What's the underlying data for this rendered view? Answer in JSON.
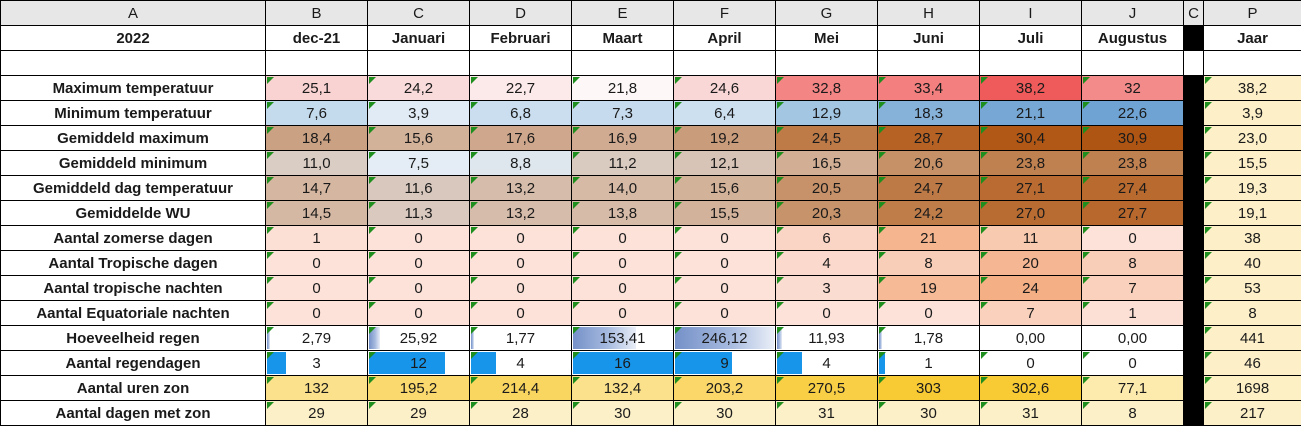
{
  "columns": {
    "letters": [
      "A",
      "B",
      "C",
      "D",
      "E",
      "F",
      "G",
      "H",
      "I",
      "J",
      "C",
      "P"
    ]
  },
  "title_row": {
    "year_label": "2022",
    "months": [
      "dec-21",
      "Januari",
      "Februari",
      "Maart",
      "April",
      "Mei",
      "Juni",
      "Juli",
      "Augustus"
    ],
    "total_label": "Jaar"
  },
  "colors": {
    "grid_border": "#000000",
    "header_bg": "#E7E7E7",
    "separator_column": "#000000",
    "error_triangle": "#1E8E1E",
    "solid_data_bar": "#1695EA",
    "gradient_data_bar": "#7591C8",
    "year_column_bg": "#FDF0C8"
  },
  "rows": [
    {
      "label": "Maximum temperatuur",
      "cells": [
        {
          "text": "25,1",
          "bg": "#F9D2D2",
          "tri": true
        },
        {
          "text": "24,2",
          "bg": "#FADBDB",
          "tri": true
        },
        {
          "text": "22,7",
          "bg": "#FCE9E9",
          "tri": true
        },
        {
          "text": "21,8",
          "bg": "#FEF7F7",
          "tri": true
        },
        {
          "text": "24,6",
          "bg": "#FAD7D7",
          "tri": true
        },
        {
          "text": "32,8",
          "bg": "#F48585",
          "tri": true
        },
        {
          "text": "33,4",
          "bg": "#F37F7F",
          "tri": true
        },
        {
          "text": "38,2",
          "bg": "#EF5B5B",
          "tri": true
        },
        {
          "text": "32",
          "bg": "#F48B8B",
          "tri": true
        }
      ],
      "total": {
        "text": "38,2",
        "bg": "#FDF0C8",
        "tri": true
      }
    },
    {
      "label": "Minimum temperatuur",
      "cells": [
        {
          "text": "7,6",
          "bg": "#C4DAED",
          "tri": true
        },
        {
          "text": "3,9",
          "bg": "#E0EBF5",
          "tri": true
        },
        {
          "text": "6,8",
          "bg": "#CADEEF",
          "tri": true
        },
        {
          "text": "7,3",
          "bg": "#C6DBEE",
          "tri": true
        },
        {
          "text": "6,4",
          "bg": "#CDE0F0",
          "tri": true
        },
        {
          "text": "12,9",
          "bg": "#A3C6E3",
          "tri": true
        },
        {
          "text": "18,3",
          "bg": "#86B2DA",
          "tri": true
        },
        {
          "text": "21,1",
          "bg": "#77A8D5",
          "tri": true
        },
        {
          "text": "22,6",
          "bg": "#6FA3D3",
          "tri": true
        }
      ],
      "total": {
        "text": "3,9",
        "bg": "#FDF0C8",
        "tri": true
      }
    },
    {
      "label": "Gemiddeld maximum",
      "cells": [
        {
          "text": "18,4",
          "bg": "#CBA184",
          "tri": true
        },
        {
          "text": "15,6",
          "bg": "#D3B29A",
          "tri": true
        },
        {
          "text": "17,6",
          "bg": "#CEA78C",
          "tri": true
        },
        {
          "text": "16,9",
          "bg": "#D0AB92",
          "tri": true
        },
        {
          "text": "19,2",
          "bg": "#C99C7B",
          "tri": true
        },
        {
          "text": "24,5",
          "bg": "#BE7B48",
          "tri": true
        },
        {
          "text": "28,7",
          "bg": "#B56224",
          "tri": true
        },
        {
          "text": "30,4",
          "bg": "#B15817",
          "tri": true
        },
        {
          "text": "30,9",
          "bg": "#AF5513",
          "tri": true
        }
      ],
      "total": {
        "text": "23,0",
        "bg": "#FDF0C8",
        "tri": true
      }
    },
    {
      "label": "Gemiddeld minimum",
      "cells": [
        {
          "text": "11,0",
          "bg": "#DACDC4",
          "tri": true
        },
        {
          "text": "7,5",
          "bg": "#E4EDF5",
          "tri": true
        },
        {
          "text": "8,8",
          "bg": "#DEE7ED",
          "tri": true
        },
        {
          "text": "11,2",
          "bg": "#DACBC1",
          "tri": true
        },
        {
          "text": "12,1",
          "bg": "#D8C4B6",
          "tri": true
        },
        {
          "text": "16,5",
          "bg": "#D2AE95",
          "tri": true
        },
        {
          "text": "20,6",
          "bg": "#C79168",
          "tri": true
        },
        {
          "text": "23,8",
          "bg": "#C08150",
          "tri": true
        },
        {
          "text": "23,8",
          "bg": "#C08150",
          "tri": true
        }
      ],
      "total": {
        "text": "15,5",
        "bg": "#FDF0C8",
        "tri": true
      }
    },
    {
      "label": "Gemiddeld dag temperatuur",
      "cells": [
        {
          "text": "14,7",
          "bg": "#D5B7A1",
          "tri": true
        },
        {
          "text": "11,6",
          "bg": "#D9C8BD",
          "tri": true
        },
        {
          "text": "13,2",
          "bg": "#D6BCAB",
          "tri": true
        },
        {
          "text": "14,0",
          "bg": "#D6BAA6",
          "tri": true
        },
        {
          "text": "15,6",
          "bg": "#D3B29A",
          "tri": true
        },
        {
          "text": "20,5",
          "bg": "#C79269",
          "tri": true
        },
        {
          "text": "24,7",
          "bg": "#BE7A46",
          "tri": true
        },
        {
          "text": "27,1",
          "bg": "#B96B31",
          "tri": true
        },
        {
          "text": "27,4",
          "bg": "#B86A2F",
          "tri": true
        }
      ],
      "total": {
        "text": "19,3",
        "bg": "#FDF0C8",
        "tri": true
      }
    },
    {
      "label": "Gemiddelde WU",
      "cells": [
        {
          "text": "14,5",
          "bg": "#D5B8A3",
          "tri": true
        },
        {
          "text": "11,3",
          "bg": "#D9C9BF",
          "tri": true
        },
        {
          "text": "13,2",
          "bg": "#D6BCAB",
          "tri": true
        },
        {
          "text": "13,8",
          "bg": "#D6BBA8",
          "tri": true
        },
        {
          "text": "15,5",
          "bg": "#D3B29B",
          "tri": true
        },
        {
          "text": "20,3",
          "bg": "#C7936B",
          "tri": true
        },
        {
          "text": "24,2",
          "bg": "#BF7D4A",
          "tri": true
        },
        {
          "text": "27,0",
          "bg": "#B96C32",
          "tri": true
        },
        {
          "text": "27,7",
          "bg": "#B8682C",
          "tri": true
        }
      ],
      "total": {
        "text": "19,1",
        "bg": "#FDF0C8",
        "tri": true
      }
    },
    {
      "label": "Aantal zomerse dagen",
      "cells": [
        {
          "text": "1",
          "bg": "#FCE0D6",
          "tri": true
        },
        {
          "text": "0",
          "bg": "#FCE2D9",
          "tri": true
        },
        {
          "text": "0",
          "bg": "#FCE2D9",
          "tri": true
        },
        {
          "text": "0",
          "bg": "#FCE2D9",
          "tri": true
        },
        {
          "text": "0",
          "bg": "#FCE2D9",
          "tri": true
        },
        {
          "text": "6",
          "bg": "#FAD4C5",
          "tri": true
        },
        {
          "text": "21",
          "bg": "#F5B58F",
          "tri": true
        },
        {
          "text": "11",
          "bg": "#F8CAAF",
          "tri": true
        },
        {
          "text": "0",
          "bg": "#FCE2D9",
          "tri": true
        }
      ],
      "total": {
        "text": "38",
        "bg": "#FDF0C8",
        "tri": true
      }
    },
    {
      "label": "Aantal Tropische dagen",
      "cells": [
        {
          "text": "0",
          "bg": "#FCE2D9",
          "tri": true
        },
        {
          "text": "0",
          "bg": "#FCE2D9",
          "tri": true
        },
        {
          "text": "0",
          "bg": "#FCE2D9",
          "tri": true
        },
        {
          "text": "0",
          "bg": "#FCE2D9",
          "tri": true
        },
        {
          "text": "0",
          "bg": "#FCE2D9",
          "tri": true
        },
        {
          "text": "4",
          "bg": "#FBD9CC",
          "tri": true
        },
        {
          "text": "8",
          "bg": "#F9CEB8",
          "tri": true
        },
        {
          "text": "20",
          "bg": "#F5B793",
          "tri": true
        },
        {
          "text": "8",
          "bg": "#F9CEB8",
          "tri": true
        }
      ],
      "total": {
        "text": "40",
        "bg": "#FDF0C8",
        "tri": true
      }
    },
    {
      "label": "Aantal tropische nachten",
      "cells": [
        {
          "text": "0",
          "bg": "#FCE2D9",
          "tri": true
        },
        {
          "text": "0",
          "bg": "#FCE2D9",
          "tri": true
        },
        {
          "text": "0",
          "bg": "#FCE2D9",
          "tri": true
        },
        {
          "text": "0",
          "bg": "#FCE2D9",
          "tri": true
        },
        {
          "text": "0",
          "bg": "#FCE2D9",
          "tri": true
        },
        {
          "text": "3",
          "bg": "#FBDCD0",
          "tri": true
        },
        {
          "text": "19",
          "bg": "#F6BA97",
          "tri": true
        },
        {
          "text": "24",
          "bg": "#F4AF85",
          "tri": true
        },
        {
          "text": "7",
          "bg": "#F9D1BC",
          "tri": true
        }
      ],
      "total": {
        "text": "53",
        "bg": "#FDF0C8",
        "tri": true
      }
    },
    {
      "label": "Aantal  Equatoriale nachten",
      "cells": [
        {
          "text": "0",
          "bg": "#FCE2D9",
          "tri": true
        },
        {
          "text": "0",
          "bg": "#FCE2D9",
          "tri": true
        },
        {
          "text": "0",
          "bg": "#FCE2D9",
          "tri": true
        },
        {
          "text": "0",
          "bg": "#FCE2D9",
          "tri": true
        },
        {
          "text": "0",
          "bg": "#FCE2D9",
          "tri": true
        },
        {
          "text": "0",
          "bg": "#FCE2D9",
          "tri": true
        },
        {
          "text": "0",
          "bg": "#FCE2D9",
          "tri": true
        },
        {
          "text": "7",
          "bg": "#F9D1BC",
          "tri": true
        },
        {
          "text": "1",
          "bg": "#FCE0D6",
          "tri": true
        }
      ],
      "total": {
        "text": "8",
        "bg": "#FDF0C8",
        "tri": true
      }
    },
    {
      "label": "Hoeveelheid regen",
      "cells": [
        {
          "text": "2,79",
          "bg": "#FFFFFF",
          "tri": true,
          "bar": {
            "kind": "gradient",
            "pct": 1.5
          }
        },
        {
          "text": "25,92",
          "bg": "#FFFFFF",
          "tri": true,
          "bar": {
            "kind": "gradient",
            "pct": 10.5
          }
        },
        {
          "text": "1,77",
          "bg": "#FFFFFF",
          "tri": true,
          "bar": {
            "kind": "gradient",
            "pct": 1
          }
        },
        {
          "text": "153,41",
          "bg": "#FFFFFF",
          "tri": true,
          "bar": {
            "kind": "gradient",
            "pct": 62
          }
        },
        {
          "text": "246,12",
          "bg": "#FFFFFF",
          "tri": true,
          "bar": {
            "kind": "gradient",
            "pct": 98
          }
        },
        {
          "text": "11,93",
          "bg": "#FFFFFF",
          "tri": true,
          "bar": {
            "kind": "gradient",
            "pct": 4.8
          }
        },
        {
          "text": "1,78",
          "bg": "#FFFFFF",
          "tri": true,
          "bar": {
            "kind": "gradient",
            "pct": 1
          }
        },
        {
          "text": "0,00",
          "bg": "#FFFFFF",
          "tri": false
        },
        {
          "text": "0,00",
          "bg": "#FFFFFF",
          "tri": false
        }
      ],
      "total": {
        "text": "441",
        "bg": "#FDF0C8",
        "tri": true
      }
    },
    {
      "label": "Aantal regendagen",
      "cells": [
        {
          "text": "3",
          "bg": "#FFFFFF",
          "tri": true,
          "bar": {
            "kind": "solid",
            "pct": 19
          }
        },
        {
          "text": "12",
          "bg": "#FFFFFF",
          "tri": true,
          "bar": {
            "kind": "solid",
            "pct": 75
          }
        },
        {
          "text": "4",
          "bg": "#FFFFFF",
          "tri": true,
          "bar": {
            "kind": "solid",
            "pct": 25
          }
        },
        {
          "text": "16",
          "bg": "#FFFFFF",
          "tri": true,
          "bar": {
            "kind": "solid",
            "pct": 100
          }
        },
        {
          "text": "9",
          "bg": "#FFFFFF",
          "tri": true,
          "bar": {
            "kind": "solid",
            "pct": 56
          }
        },
        {
          "text": "4",
          "bg": "#FFFFFF",
          "tri": true,
          "bar": {
            "kind": "solid",
            "pct": 25
          }
        },
        {
          "text": "1",
          "bg": "#FFFFFF",
          "tri": true,
          "bar": {
            "kind": "solid",
            "pct": 6
          }
        },
        {
          "text": "0",
          "bg": "#FFFFFF",
          "tri": true
        },
        {
          "text": "0",
          "bg": "#FFFFFF",
          "tri": true
        }
      ],
      "total": {
        "text": "46",
        "bg": "#FDF0C8",
        "tri": true
      }
    },
    {
      "label": "Aantal uren zon",
      "cells": [
        {
          "text": "132",
          "bg": "#FBE18C",
          "tri": true
        },
        {
          "text": "195,2",
          "bg": "#FAD96E",
          "tri": true
        },
        {
          "text": "214,4",
          "bg": "#F9D660",
          "tri": true
        },
        {
          "text": "132,4",
          "bg": "#FBE18C",
          "tri": true
        },
        {
          "text": "203,2",
          "bg": "#FAD768",
          "tri": true
        },
        {
          "text": "270,5",
          "bg": "#F9CF46",
          "tri": true
        },
        {
          "text": "303",
          "bg": "#F8CB35",
          "tri": true
        },
        {
          "text": "302,6",
          "bg": "#F8CB35",
          "tri": true
        },
        {
          "text": "77,1",
          "bg": "#FDEBAE",
          "tri": true
        }
      ],
      "total": {
        "text": "1698",
        "bg": "#FDF0C4",
        "tri": true
      }
    },
    {
      "label": "Aantal dagen met zon",
      "cells": [
        {
          "text": "29",
          "bg": "#FCF0C8",
          "tri": true
        },
        {
          "text": "29",
          "bg": "#FCF0C8",
          "tri": true
        },
        {
          "text": "28",
          "bg": "#FCF0C8",
          "tri": true
        },
        {
          "text": "30",
          "bg": "#FCF0C8",
          "tri": true
        },
        {
          "text": "30",
          "bg": "#FCF0C8",
          "tri": true
        },
        {
          "text": "31",
          "bg": "#FCF0C8",
          "tri": true
        },
        {
          "text": "30",
          "bg": "#FCF0C8",
          "tri": true
        },
        {
          "text": "31",
          "bg": "#FCF0C8",
          "tri": true
        },
        {
          "text": "8",
          "bg": "#FCF0C8",
          "tri": true
        }
      ],
      "total": {
        "text": "217",
        "bg": "#FCF0C8",
        "tri": true
      }
    }
  ]
}
